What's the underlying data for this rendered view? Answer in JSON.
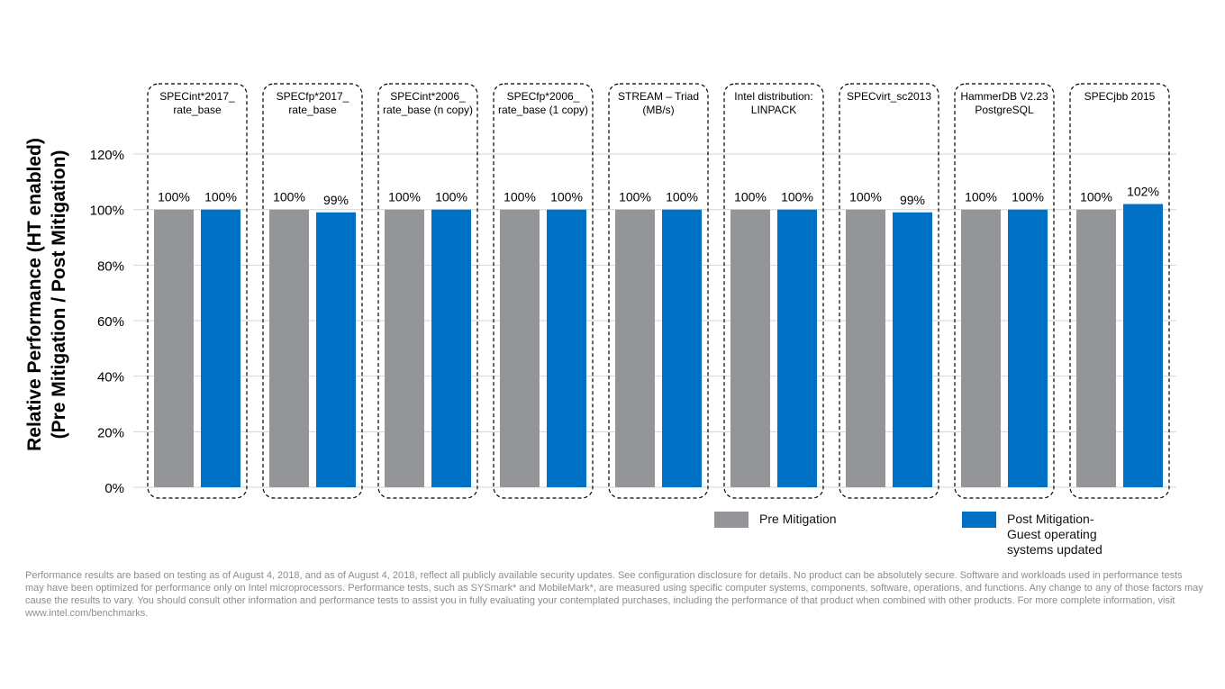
{
  "chart_data": {
    "type": "bar",
    "ylabel_lines": [
      "Relative Performance (HT enabled)",
      "(Pre Mitigation / Post Mitigation)"
    ],
    "ylim": [
      0,
      120
    ],
    "yticks": [
      0,
      20,
      40,
      60,
      80,
      100,
      120
    ],
    "ytick_labels": [
      "0%",
      "20%",
      "40%",
      "60%",
      "80%",
      "100%",
      "120%"
    ],
    "grid": true,
    "legend_position": "bottom-right",
    "categories": [
      [
        "SPECint*2017_",
        "rate_base"
      ],
      [
        "SPECfp*2017_",
        "rate_base"
      ],
      [
        "SPECint*2006_",
        "rate_base (n copy)"
      ],
      [
        "SPECfp*2006_",
        "rate_base (1 copy)"
      ],
      [
        "STREAM – Triad",
        "(MB/s)"
      ],
      [
        "Intel distribution:",
        "LINPACK"
      ],
      [
        "SPECvirt_sc2013",
        ""
      ],
      [
        "HammerDB V2.23",
        "PostgreSQL"
      ],
      [
        "SPECjbb 2015",
        ""
      ]
    ],
    "series": [
      {
        "name": "Pre Mitigation",
        "color": "#939598",
        "values": [
          100,
          100,
          100,
          100,
          100,
          100,
          100,
          100,
          100
        ],
        "labels": [
          "100%",
          "100%",
          "100%",
          "100%",
          "100%",
          "100%",
          "100%",
          "100%",
          "100%"
        ]
      },
      {
        "name": "Post Mitigation-\nGuest operating\nsystems updated",
        "color": "#0071c5",
        "values": [
          100,
          99,
          100,
          100,
          100,
          100,
          99,
          100,
          102
        ],
        "labels": [
          "100%",
          "99%",
          "100%",
          "100%",
          "100%",
          "100%",
          "99%",
          "100%",
          "102%"
        ]
      }
    ]
  },
  "footnote": "Performance results are based on testing as of August 4, 2018, and as of August 4, 2018, reflect all publicly available security updates. See configuration disclosure for details. No product can be absolutely secure. Software and workloads used in performance tests may have been optimized for performance only on Intel microprocessors. Performance tests, such as SYSmark* and MobileMark*, are measured using specific computer systems, components, software, operations, and functions. Any change to any of those factors may cause the results to vary. You should consult other information and performance tests to assist you in fully evaluating your contemplated purchases, including the performance of that product when combined with other products. For more complete information, visit www.intel.com/benchmarks."
}
